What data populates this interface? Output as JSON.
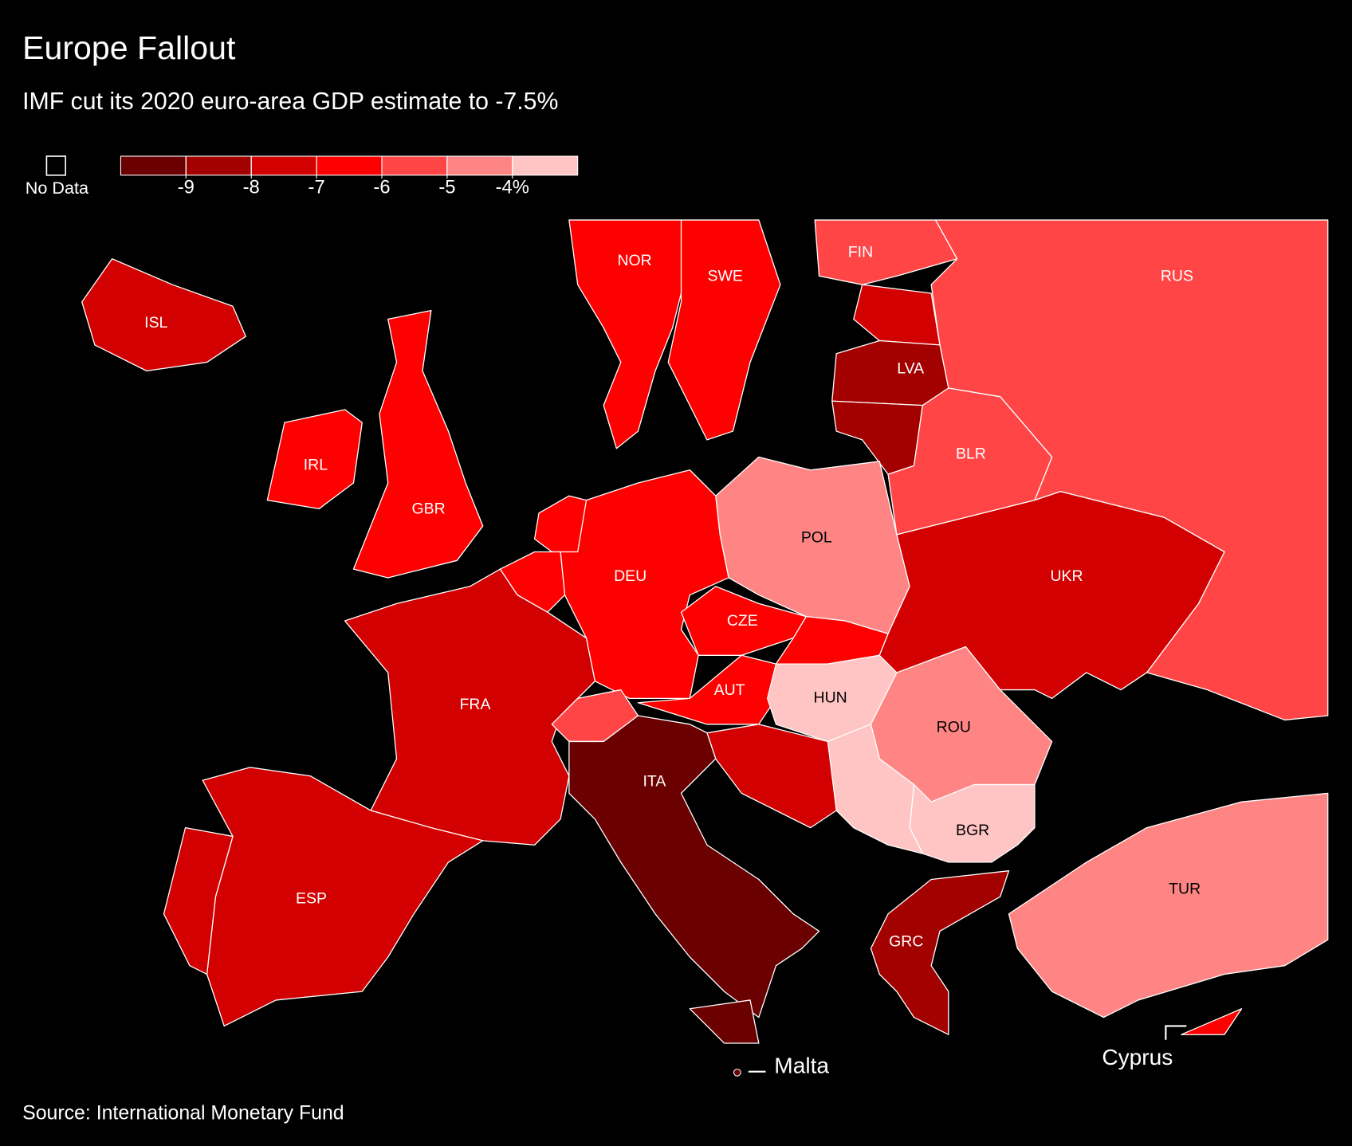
{
  "header": {
    "title": "Europe Fallout",
    "subtitle": "IMF cut its 2020 euro-area GDP estimate to -7.5%"
  },
  "legend": {
    "no_data_label": "No Data",
    "range": [
      -10,
      -3
    ],
    "colors": [
      "#6b0000",
      "#a30000",
      "#d20000",
      "#ff0000",
      "#ff4545",
      "#ff8585",
      "#ffc4c4"
    ],
    "ticks": [
      -9,
      -8,
      -7,
      -6,
      -5,
      {
        "value": -4,
        "label": "-4%"
      }
    ]
  },
  "countries": [
    {
      "label": "ISL",
      "color": "#d20000"
    },
    {
      "label": "NOR",
      "color": "#ff0000"
    },
    {
      "label": "SWE",
      "color": "#ff0000"
    },
    {
      "label": "FIN",
      "color": "#ff4545"
    },
    {
      "label": "RUS",
      "color": "#ff4545"
    },
    {
      "label": null,
      "color": "#d20000"
    },
    {
      "label": "LVA",
      "color": "#a30000"
    },
    {
      "label": null,
      "color": "#a30000"
    },
    {
      "label": "BLR",
      "color": "#ff4545"
    },
    {
      "label": "POL",
      "color": "#ff8585"
    },
    {
      "label": "DEU",
      "color": "#ff0000"
    },
    {
      "label": null,
      "color": "#ff0000"
    },
    {
      "label": null,
      "color": "#ff0000"
    },
    {
      "label": "FRA",
      "color": "#d20000"
    },
    {
      "label": "ESP",
      "color": "#d20000"
    },
    {
      "label": null,
      "color": "#d20000"
    },
    {
      "label": "GBR",
      "color": "#ff0000"
    },
    {
      "label": "IRL",
      "color": "#ff0000"
    },
    {
      "label": null,
      "color": "#ff4545"
    },
    {
      "label": "AUT",
      "color": "#ff0000"
    },
    {
      "label": "CZE",
      "color": "#ff0000"
    },
    {
      "label": null,
      "color": "#ff0000"
    },
    {
      "label": "HUN",
      "color": "#ffc4c4"
    },
    {
      "label": "ROU",
      "color": "#ff8585"
    },
    {
      "label": "BGR",
      "color": "#ffc4c4"
    },
    {
      "label": null,
      "color": "#ffc4c4"
    },
    {
      "label": null,
      "color": "#d20000"
    },
    {
      "label": "UKR",
      "color": "#d20000"
    },
    {
      "label": "ITA",
      "color": "#6b0000"
    },
    {
      "label": null,
      "color": "#6b0000"
    },
    {
      "label": "GRC",
      "color": "#a30000"
    },
    {
      "label": "TUR",
      "color": "#ff8585"
    },
    {
      "label": null,
      "color": "#ff0000"
    }
  ],
  "annotations": {
    "malta": "Malta",
    "cyprus": "Cyprus"
  },
  "footer": {
    "source": "Source: International Monetary Fund"
  }
}
